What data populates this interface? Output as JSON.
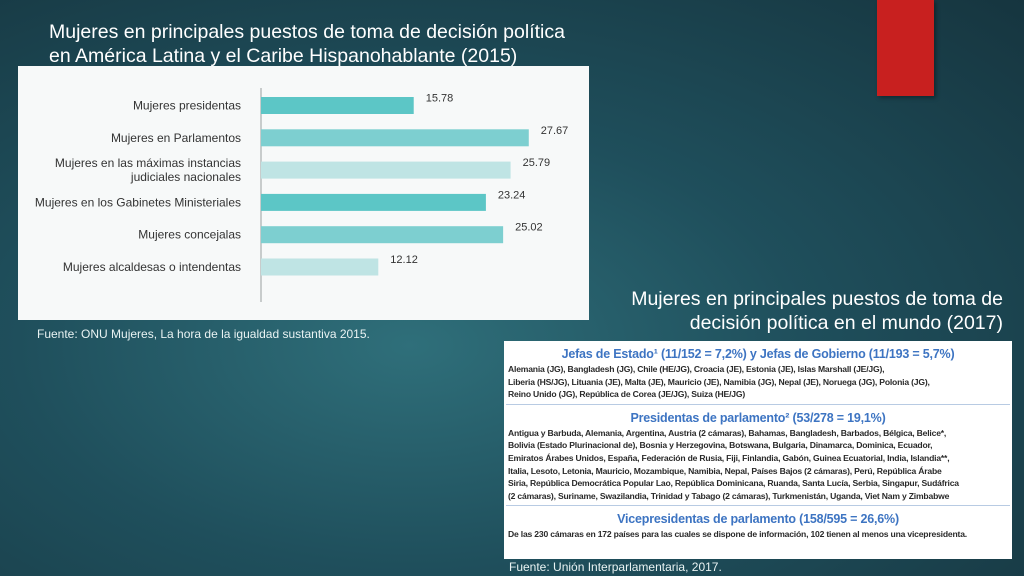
{
  "title_top": {
    "line1": "Mujeres en principales puestos de toma de decisión política",
    "line2": "en América Latina y el Caribe Hispanohablante (2015)"
  },
  "chart_data": {
    "type": "bar",
    "orientation": "horizontal",
    "categories": [
      [
        "Mujeres presidentas"
      ],
      [
        "Mujeres en Parlamentos"
      ],
      [
        "Mujeres en las máximas instancias",
        "judiciales nacionales"
      ],
      [
        "Mujeres en los Gabinetes Ministeriales"
      ],
      [
        "Mujeres concejalas"
      ],
      [
        "Mujeres alcaldesas o intendentas"
      ]
    ],
    "values": [
      15.78,
      27.67,
      25.79,
      23.24,
      25.02,
      12.12
    ],
    "value_labels": [
      "15.78",
      "27.67",
      "25.79",
      "23.24",
      "25.02",
      "12.12"
    ],
    "bar_colors": [
      "#5cc6c6",
      "#7dcfd0",
      "#bfe4e4",
      "#5cc6c6",
      "#7dcfd0",
      "#bfe4e4"
    ],
    "xlim": [
      0,
      31
    ],
    "grid": false,
    "title": "",
    "xlabel": "",
    "ylabel": ""
  },
  "source_left": "Fuente: ONU Mujeres, La hora de la igualdad sustantiva 2015.",
  "title_right": {
    "line1": "Mujeres en principales puestos de toma de",
    "line2": "decisión política en el mundo (2017)"
  },
  "table": {
    "sections": [
      {
        "heading": "Jefas de Estado¹ (11/152 = 7,2%) y Jefas de Gobierno (11/193 = 5,7%)",
        "lines": [
          "Alemania (JG), Bangladesh (JG), Chile (HE/JG), Croacia (JE), Estonia (JE), Islas Marshall (JE/JG),",
          "Liberia (HS/JG), Lituania (JE), Malta (JE), Mauricio (JE), Namibia (JG), Nepal (JE), Noruega (JG), Polonia (JG),",
          "Reino Unido (JG), República de Corea (JE/JG), Suiza (HE/JG)"
        ]
      },
      {
        "heading": "Presidentas de parlamento² (53/278 = 19,1%)",
        "lines": [
          "Antigua y Barbuda, Alemania, Argentina, Austria (2 cámaras), Bahamas, Bangladesh, Barbados, Bélgica, Belice*,",
          "Bolivia (Estado Plurinacional de), Bosnia y Herzegovina, Botswana, Bulgaria, Dinamarca, Dominica, Ecuador,",
          "Emiratos Árabes Unidos, España, Federación de Rusia, Fiji, Finlandia, Gabón, Guinea Ecuatorial, India, Islandia**,",
          "Italia, Lesoto, Letonia, Mauricio, Mozambique, Namibia, Nepal, Países Bajos (2 cámaras), Perú, República Árabe",
          "Siria, República Democrática Popular Lao, República Dominicana, Ruanda, Santa Lucía, Serbia, Singapur, Sudáfrica",
          "(2 cámaras), Suriname, Swazilandia, Trinidad y Tabago (2 cámaras), Turkmenistán, Uganda, Viet Nam y Zimbabwe"
        ]
      },
      {
        "heading": "Vicepresidentas de parlamento (158/595 = 26,6%)",
        "lines": [
          "De las 230 cámaras en 172 países para las cuales se dispone de información, 102 tienen al menos una vicepresidenta."
        ]
      }
    ]
  },
  "source_right": "Fuente: Unión Interparlamentaria, 2017.",
  "colors": {
    "accent_red": "#c8201f",
    "heading_blue": "#3d74c2"
  }
}
